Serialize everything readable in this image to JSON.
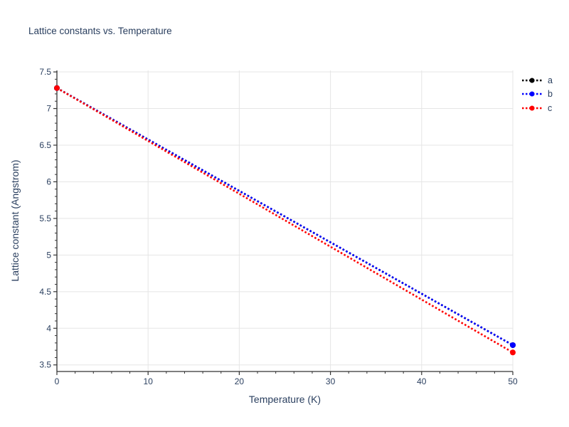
{
  "figure": {
    "background": "#ffffff",
    "font_color": "#2a3f5f",
    "grid_color": "#e5e5e5",
    "axis_color": "#333333"
  },
  "chart_data": {
    "type": "line",
    "title": "Lattice constants vs. Temperature",
    "xlabel": "Temperature (K)",
    "ylabel": "Lattice constant (Angstrom)",
    "x": [
      0,
      50
    ],
    "series": [
      {
        "name": "a",
        "color": "#000000",
        "values": [
          7.28,
          3.77
        ]
      },
      {
        "name": "b",
        "color": "#0000ff",
        "values": [
          7.28,
          3.77
        ]
      },
      {
        "name": "c",
        "color": "#ff0000",
        "values": [
          7.28,
          3.67
        ]
      }
    ],
    "xlim": [
      0,
      50
    ],
    "ylim": [
      3.41,
      7.52
    ],
    "x_ticks": [
      0,
      10,
      20,
      30,
      40,
      50
    ],
    "y_ticks": [
      3.5,
      4,
      4.5,
      5,
      5.5,
      6,
      6.5,
      7,
      7.5
    ],
    "x_minor_step": 2,
    "y_minor_step": 0.1,
    "grid": true,
    "line_style": "dotted",
    "marker": "circle-endpoints",
    "legend": {
      "position": "right",
      "entries": [
        "a",
        "b",
        "c"
      ]
    }
  }
}
